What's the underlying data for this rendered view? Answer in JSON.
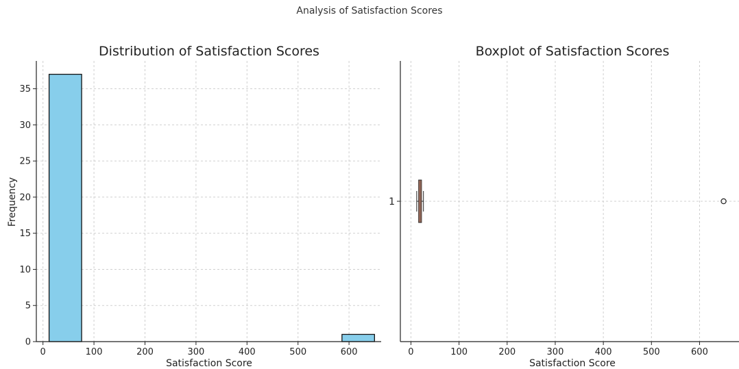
{
  "suptitle": "Analysis of Satisfaction Scores",
  "chart_data": [
    {
      "type": "bar",
      "title": "Distribution of Satisfaction Scores",
      "xlabel": "Satisfaction Score",
      "ylabel": "Frequency",
      "xlim": [
        -13,
        663
      ],
      "ylim": [
        0,
        38.85
      ],
      "xticks": [
        0,
        100,
        200,
        300,
        400,
        500,
        600
      ],
      "yticks": [
        0,
        5,
        10,
        15,
        20,
        25,
        30,
        35
      ],
      "grid": true,
      "bins": [
        {
          "x0": 12,
          "x1": 75.8,
          "value": 37
        },
        {
          "x0": 75.8,
          "x1": 139.6,
          "value": 0
        },
        {
          "x0": 139.6,
          "x1": 203.4,
          "value": 0
        },
        {
          "x0": 203.4,
          "x1": 267.2,
          "value": 0
        },
        {
          "x0": 267.2,
          "x1": 331,
          "value": 0
        },
        {
          "x0": 331,
          "x1": 394.8,
          "value": 0
        },
        {
          "x0": 394.8,
          "x1": 458.6,
          "value": 0
        },
        {
          "x0": 458.6,
          "x1": 522.4,
          "value": 0
        },
        {
          "x0": 522.4,
          "x1": 586.2,
          "value": 0
        },
        {
          "x0": 586.2,
          "x1": 650,
          "value": 1
        }
      ],
      "bar_color": "#87ceeb"
    },
    {
      "type": "boxplot",
      "title": "Boxplot of Satisfaction Scores",
      "xlabel": "Satisfaction Score",
      "xlim": [
        -22,
        682
      ],
      "xticks": [
        0,
        100,
        200,
        300,
        400,
        500,
        600
      ],
      "yticks": [
        "1"
      ],
      "grid": true,
      "box": {
        "whisker_low": 12,
        "q1": 16,
        "median": 19,
        "q3": 22,
        "whisker_high": 26,
        "outliers": [
          650
        ]
      },
      "box_color": "#e9967a",
      "median_color": "#333333"
    }
  ]
}
